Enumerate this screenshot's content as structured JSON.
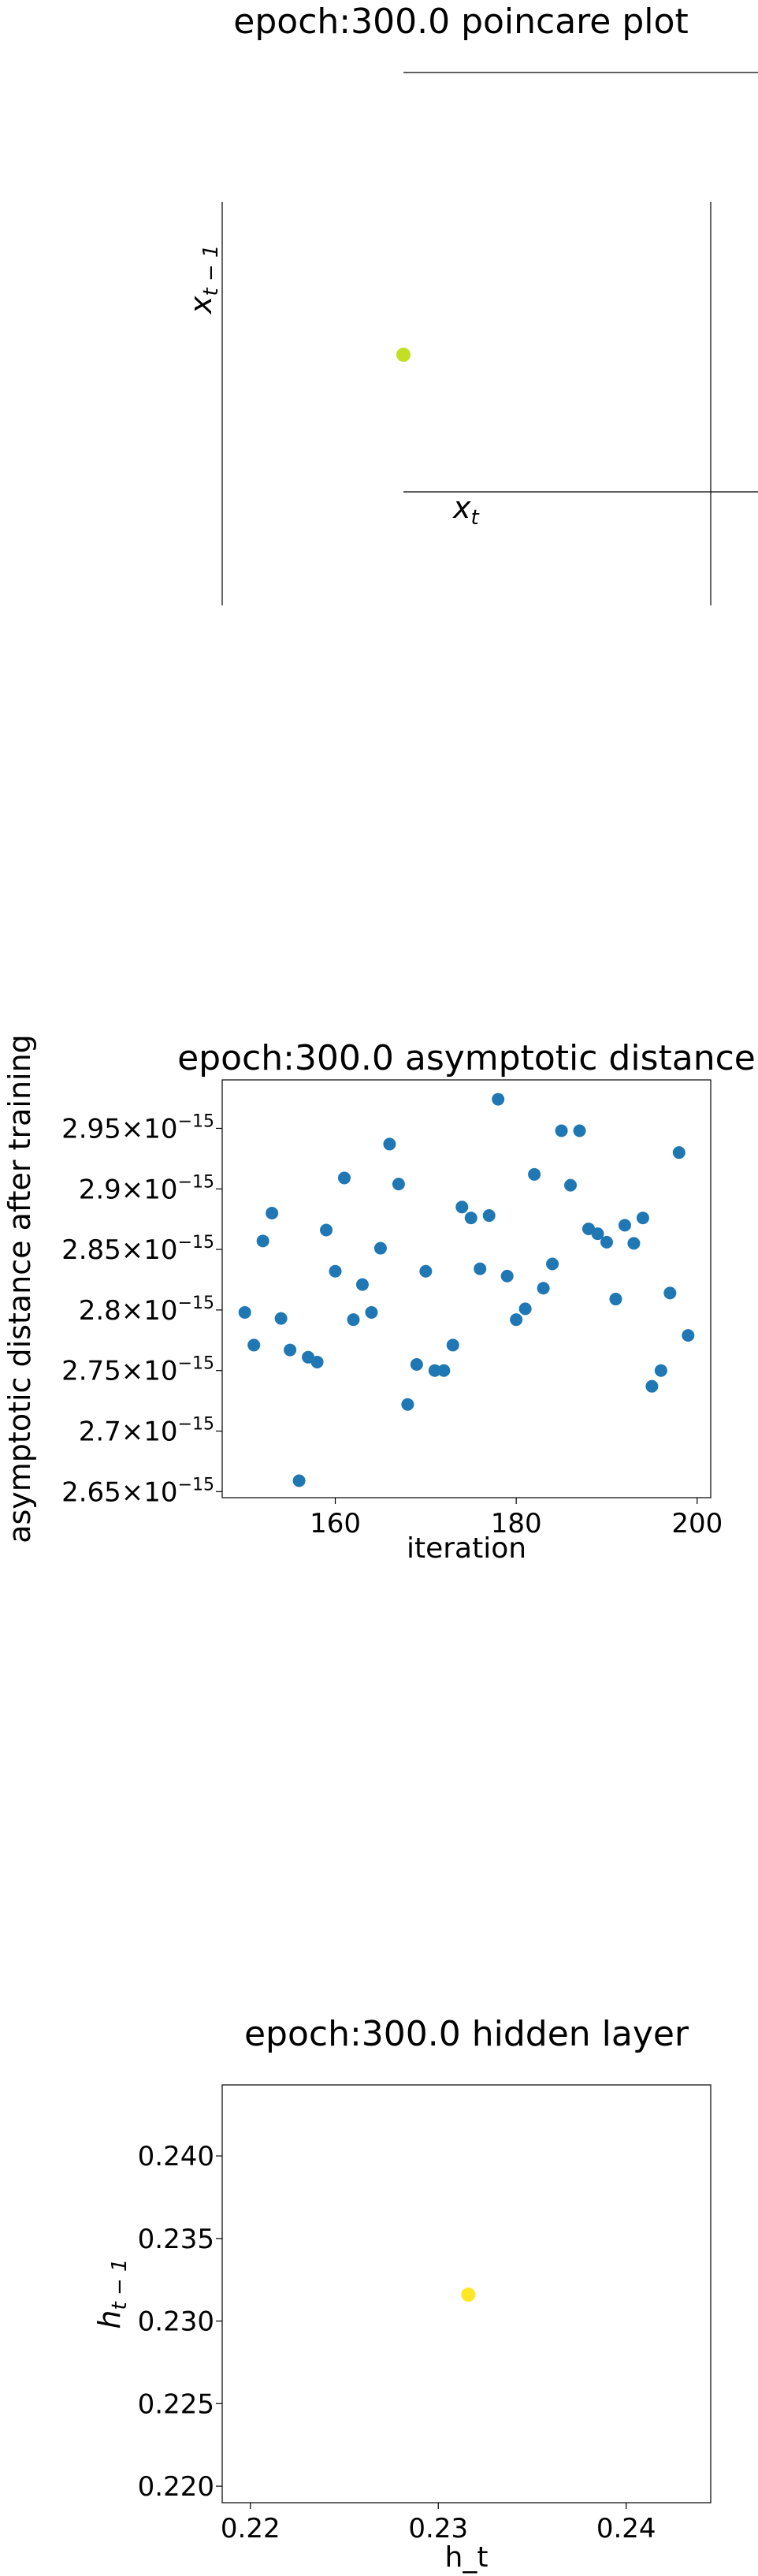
{
  "chart_data": [
    {
      "type": "scatter",
      "title": "epoch:300.0 poincare plot",
      "xlabel": "x_t",
      "ylabel": "x_{t-1}",
      "grid": false,
      "point_color": "#c2df23",
      "points": [
        {
          "x": 0.2316,
          "y": 0.2316
        }
      ]
    },
    {
      "type": "scatter",
      "title": "epoch:300.0 asymptotic distance",
      "xlabel": "iteration",
      "ylabel": "asymptotic distance after training",
      "ylabel_exponent": "−15",
      "grid": false,
      "point_color": "#1f77b4",
      "xlim": [
        147.5,
        201.5
      ],
      "ylim": [
        2.645,
        2.99
      ],
      "xticks": [
        160,
        180,
        200
      ],
      "xtick_labels": [
        "160",
        "180",
        "200"
      ],
      "yticks": [
        2.65,
        2.7,
        2.75,
        2.8,
        2.85,
        2.9,
        2.95
      ],
      "ytick_labels": [
        "2.65",
        "2.7",
        "2.75",
        "2.8",
        "2.85",
        "2.9",
        "2.95"
      ],
      "x": [
        150,
        151,
        152,
        153,
        154,
        155,
        156,
        157,
        158,
        159,
        160,
        161,
        162,
        163,
        164,
        165,
        166,
        167,
        168,
        169,
        170,
        171,
        172,
        173,
        174,
        175,
        176,
        177,
        178,
        179,
        180,
        181,
        182,
        183,
        184,
        185,
        186,
        187,
        188,
        189,
        190,
        191,
        192,
        193,
        194,
        195,
        196,
        197,
        198,
        199
      ],
      "y": [
        2.798,
        2.771,
        2.857,
        2.88,
        2.793,
        2.767,
        2.659,
        2.761,
        2.757,
        2.866,
        2.832,
        2.909,
        2.792,
        2.821,
        2.798,
        2.851,
        2.937,
        2.904,
        2.722,
        2.755,
        2.832,
        2.75,
        2.75,
        2.771,
        2.885,
        2.876,
        2.834,
        2.878,
        2.974,
        2.828,
        2.792,
        2.801,
        2.912,
        2.818,
        2.838,
        2.948,
        2.903,
        2.948,
        2.867,
        2.863,
        2.856,
        2.809,
        2.87,
        2.855,
        2.876,
        2.737,
        2.75,
        2.814,
        2.93,
        2.779
      ]
    },
    {
      "type": "scatter",
      "title": "epoch:300.0 hidden layer",
      "xlabel": "h_t",
      "ylabel": "h_{t-1}",
      "grid": false,
      "point_color": "#fde725",
      "xlim": [
        0.2185,
        0.2445
      ],
      "ylim": [
        0.219,
        0.2443
      ],
      "xticks": [
        0.22,
        0.23,
        0.24
      ],
      "xtick_labels": [
        "0.22",
        "0.23",
        "0.24"
      ],
      "yticks": [
        0.22,
        0.225,
        0.23,
        0.235,
        0.24
      ],
      "ytick_labels": [
        "0.220",
        "0.225",
        "0.230",
        "0.235",
        "0.240"
      ],
      "points": [
        {
          "x": 0.2316,
          "y": 0.2316
        }
      ]
    }
  ]
}
